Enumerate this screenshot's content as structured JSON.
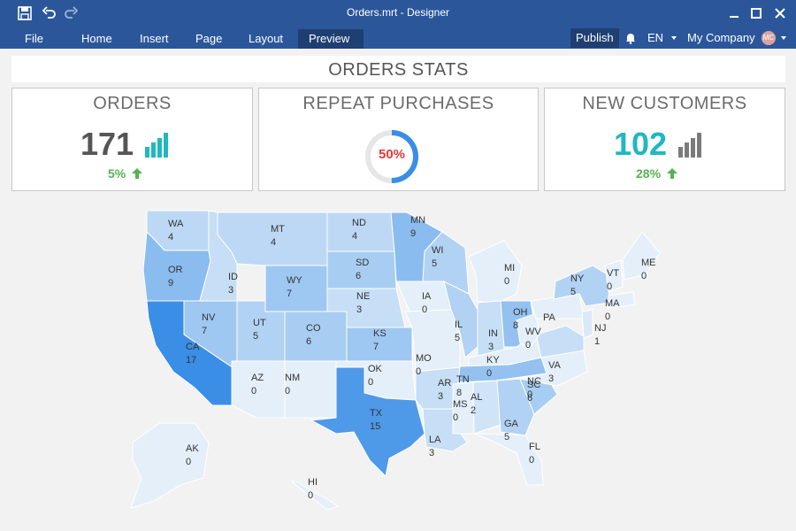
{
  "window": {
    "title": "Orders.mrt - Designer"
  },
  "quick_access": {
    "icons": [
      "save-icon",
      "undo-icon",
      "redo-icon"
    ]
  },
  "menu": {
    "items": [
      "File",
      "Home",
      "Insert",
      "Page",
      "Layout",
      "Preview"
    ],
    "active": "Preview",
    "publish_label": "Publish",
    "language": "EN",
    "company": "My Company",
    "avatar_initials": "MC"
  },
  "report": {
    "title": "ORDERS STATS",
    "cards": [
      {
        "title": "ORDERS",
        "value": "171",
        "delta": "5%",
        "value_color": "#555555",
        "icon": "bar-chart-icon",
        "icon_color": "#1fb8c1"
      },
      {
        "title": "REPEAT PURCHASES",
        "value": "50%",
        "value_fraction": 0.5,
        "value_color": "#e53935",
        "ring_color": "#3a8ee6"
      },
      {
        "title": "NEW CUSTOMERS",
        "value": "102",
        "delta": "28%",
        "value_color": "#1fb8c1",
        "icon": "bar-chart-icon",
        "icon_color": "#7a7a7a"
      }
    ]
  },
  "map": {
    "states": [
      {
        "code": "WA",
        "value": "4"
      },
      {
        "code": "OR",
        "value": "9"
      },
      {
        "code": "CA",
        "value": "17"
      },
      {
        "code": "ID",
        "value": "3"
      },
      {
        "code": "NV",
        "value": "7"
      },
      {
        "code": "MT",
        "value": "4"
      },
      {
        "code": "WY",
        "value": "7"
      },
      {
        "code": "UT",
        "value": "5"
      },
      {
        "code": "AZ",
        "value": "0"
      },
      {
        "code": "CO",
        "value": "6"
      },
      {
        "code": "NM",
        "value": "0"
      },
      {
        "code": "ND",
        "value": "4"
      },
      {
        "code": "SD",
        "value": "6"
      },
      {
        "code": "NE",
        "value": "3"
      },
      {
        "code": "KS",
        "value": "7"
      },
      {
        "code": "OK",
        "value": "0"
      },
      {
        "code": "TX",
        "value": "15"
      },
      {
        "code": "MN",
        "value": "9"
      },
      {
        "code": "IA",
        "value": "0"
      },
      {
        "code": "MO",
        "value": "0"
      },
      {
        "code": "AR",
        "value": "3"
      },
      {
        "code": "LA",
        "value": "3"
      },
      {
        "code": "WI",
        "value": "5"
      },
      {
        "code": "IL",
        "value": "5"
      },
      {
        "code": "MI",
        "value": "0"
      },
      {
        "code": "IN",
        "value": "3"
      },
      {
        "code": "OH",
        "value": "8"
      },
      {
        "code": "KY",
        "value": "0"
      },
      {
        "code": "TN",
        "value": "8"
      },
      {
        "code": "MS",
        "value": "0"
      },
      {
        "code": "AL",
        "value": "2"
      },
      {
        "code": "GA",
        "value": "5"
      },
      {
        "code": "FL",
        "value": "0"
      },
      {
        "code": "SC",
        "value": "6"
      },
      {
        "code": "NC",
        "value": "0"
      },
      {
        "code": "VA",
        "value": "3"
      },
      {
        "code": "WV",
        "value": "0"
      },
      {
        "code": "PA",
        "value": ""
      },
      {
        "code": "NY",
        "value": "5"
      },
      {
        "code": "NJ",
        "value": "1"
      },
      {
        "code": "VT",
        "value": "0"
      },
      {
        "code": "MA",
        "value": "0"
      },
      {
        "code": "ME",
        "value": "0"
      },
      {
        "code": "AK",
        "value": "0"
      },
      {
        "code": "HI",
        "value": "0"
      }
    ]
  }
}
